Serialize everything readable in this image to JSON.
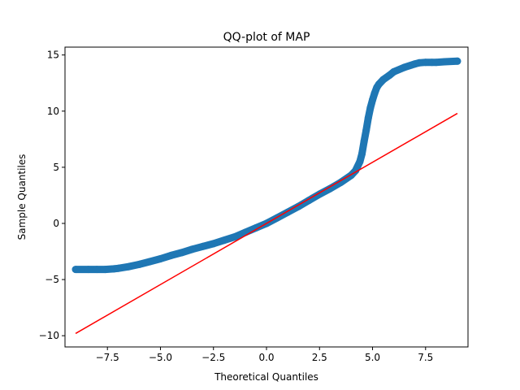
{
  "chart_data": {
    "type": "scatter",
    "title": "QQ-plot of MAP",
    "xlabel": "Theoretical Quantiles",
    "ylabel": "Sample Quantiles",
    "xlim": [
      -9.5,
      9.5
    ],
    "ylim": [
      -11,
      15.7
    ],
    "x_ticks": [
      -7.5,
      -5.0,
      -2.5,
      0.0,
      2.5,
      5.0,
      7.5
    ],
    "x_tick_labels": [
      "−7.5",
      "−5.0",
      "−2.5",
      "0.0",
      "2.5",
      "5.0",
      "7.5"
    ],
    "y_ticks": [
      -10,
      -5,
      0,
      5,
      10,
      15
    ],
    "y_tick_labels": [
      "−10",
      "−5",
      "0",
      "5",
      "10",
      "15"
    ],
    "grid": false,
    "colors": {
      "points": "#1f77b4",
      "reference_line": "#ff0000"
    },
    "reference_line": {
      "x": [
        -9.0,
        9.0
      ],
      "y": [
        -9.8,
        9.8
      ]
    },
    "series": [
      {
        "x": [
          -9.0,
          -8.4,
          -8.0,
          -7.6,
          -7.2,
          -7.0,
          -6.5,
          -6.0,
          -5.5,
          -5.0,
          -4.5,
          -4.0,
          -3.5,
          -3.0,
          -2.5,
          -2.0,
          -1.5,
          -1.0,
          -0.5,
          0.0,
          0.5,
          1.0,
          1.5,
          2.0,
          2.5,
          3.0,
          3.5,
          4.0,
          4.2,
          4.4,
          4.5,
          4.6,
          4.7,
          4.8,
          4.9,
          5.0,
          5.1,
          5.2,
          5.3,
          5.5,
          5.8,
          6.0,
          6.5,
          7.0,
          7.2,
          7.5,
          7.8,
          8.0,
          8.4,
          9.0
        ],
        "y": [
          -4.1,
          -4.1,
          -4.1,
          -4.1,
          -4.05,
          -4.0,
          -3.85,
          -3.65,
          -3.4,
          -3.15,
          -2.85,
          -2.6,
          -2.3,
          -2.05,
          -1.8,
          -1.5,
          -1.2,
          -0.8,
          -0.4,
          0.0,
          0.5,
          1.0,
          1.5,
          2.05,
          2.6,
          3.1,
          3.65,
          4.3,
          4.7,
          5.5,
          6.2,
          7.3,
          8.3,
          9.4,
          10.3,
          11.0,
          11.6,
          12.1,
          12.4,
          12.8,
          13.2,
          13.5,
          13.9,
          14.2,
          14.3,
          14.35,
          14.35,
          14.35,
          14.4,
          14.45
        ]
      }
    ]
  }
}
